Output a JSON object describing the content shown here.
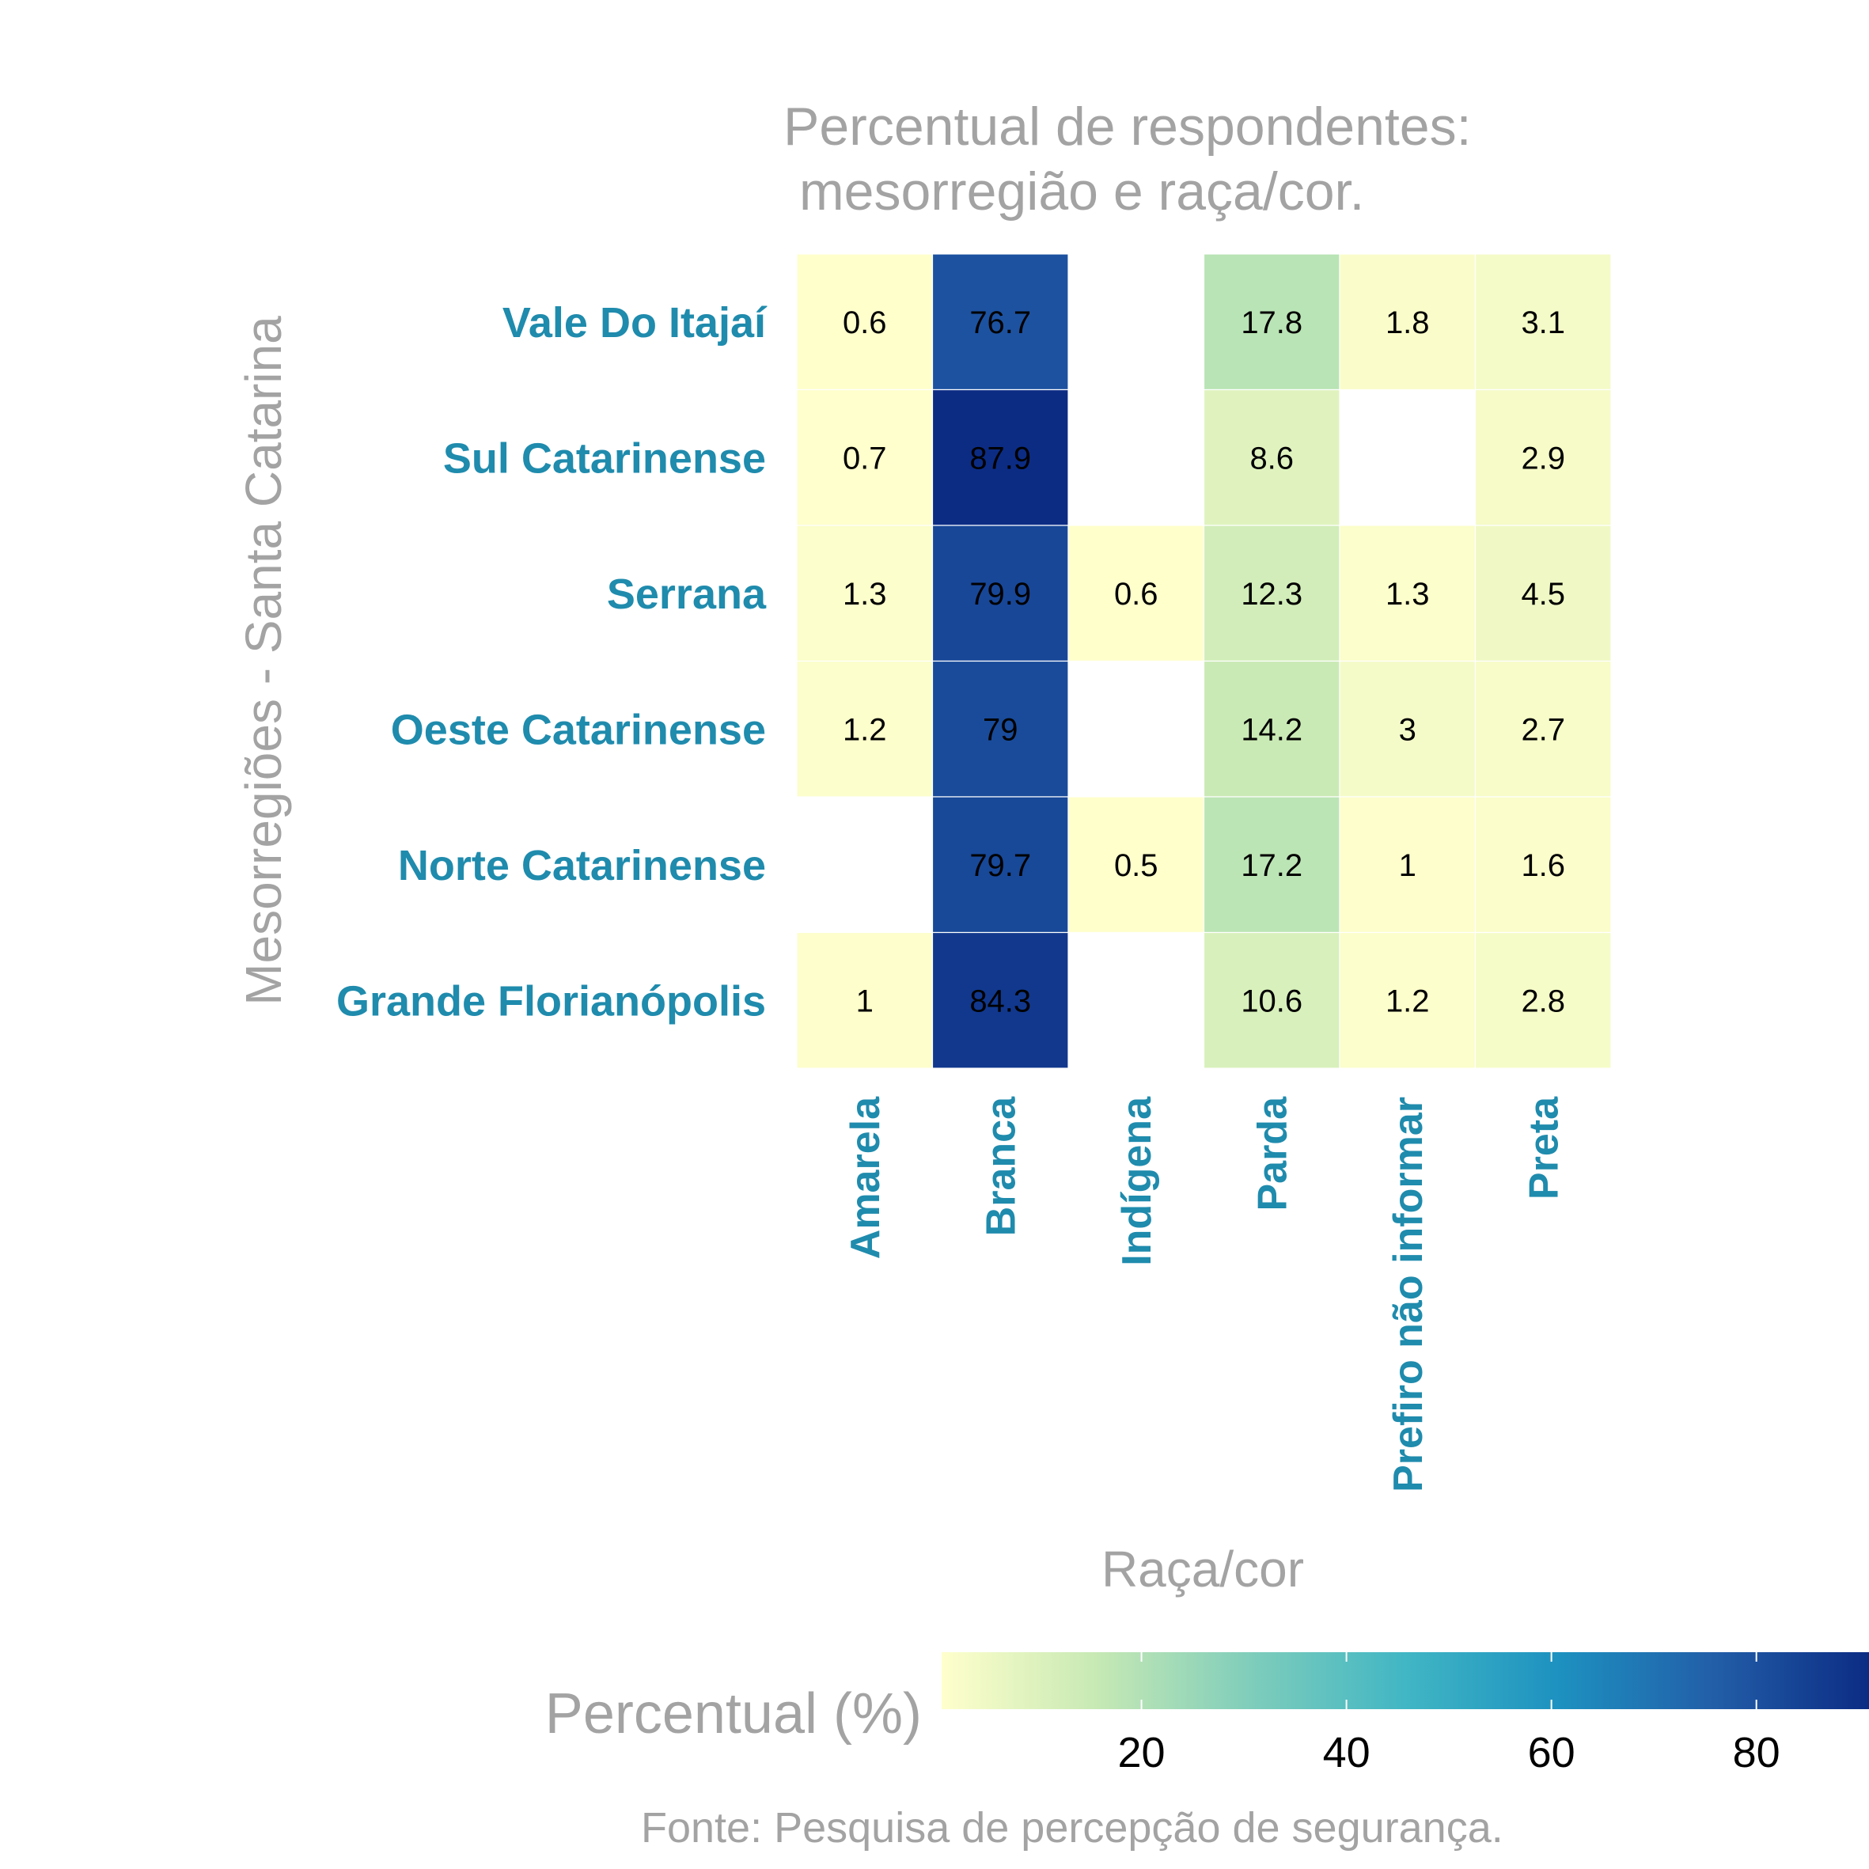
{
  "chart_data": {
    "type": "heatmap",
    "title_lines": [
      "Percentual de respondentes:",
      "mesorregião e raça/cor."
    ],
    "xlabel": "Raça/cor",
    "ylabel": "Mesorregiões - Santa Catarina",
    "x_categories": [
      "Amarela",
      "Branca",
      "Indígena",
      "Parda",
      "Prefiro não informar",
      "Preta"
    ],
    "y_categories": [
      "Vale Do Itajaí",
      "Sul Catarinense",
      "Serrana",
      "Oeste Catarinense",
      "Norte Catarinense",
      "Grande Florianópolis"
    ],
    "values": [
      [
        0.6,
        76.7,
        null,
        17.8,
        1.8,
        3.1
      ],
      [
        0.7,
        87.9,
        null,
        8.6,
        null,
        2.9
      ],
      [
        1.3,
        79.9,
        0.6,
        12.3,
        1.3,
        4.5
      ],
      [
        1.2,
        79,
        null,
        14.2,
        3,
        2.7
      ],
      [
        null,
        79.7,
        0.5,
        17.2,
        1,
        1.6
      ],
      [
        1,
        84.3,
        null,
        10.6,
        1.2,
        2.8
      ]
    ],
    "value_labels": [
      [
        "0.6",
        "76.7",
        "",
        "17.8",
        "1.8",
        "3.1"
      ],
      [
        "0.7",
        "87.9",
        "",
        "8.6",
        "",
        "2.9"
      ],
      [
        "1.3",
        "79.9",
        "0.6",
        "12.3",
        "1.3",
        "4.5"
      ],
      [
        "1.2",
        "79",
        "",
        "14.2",
        "3",
        "2.7"
      ],
      [
        "",
        "79.7",
        "0.5",
        "17.2",
        "1",
        "1.6"
      ],
      [
        "1",
        "84.3",
        "",
        "10.6",
        "1.2",
        "2.8"
      ]
    ],
    "legend": {
      "title": "Percentual (%)",
      "range": [
        0.5,
        87.9
      ],
      "ticks": [
        20,
        40,
        60,
        80
      ],
      "tick_labels": [
        "20",
        "40",
        "60",
        "80"
      ],
      "colors": [
        "#ffffcc",
        "#c7e9b4",
        "#7fcdbb",
        "#41b6c4",
        "#1d91c0",
        "#225ea8",
        "#0c2c84"
      ]
    },
    "caption": "Fonte:   Pesquisa de percepção de segurança."
  }
}
